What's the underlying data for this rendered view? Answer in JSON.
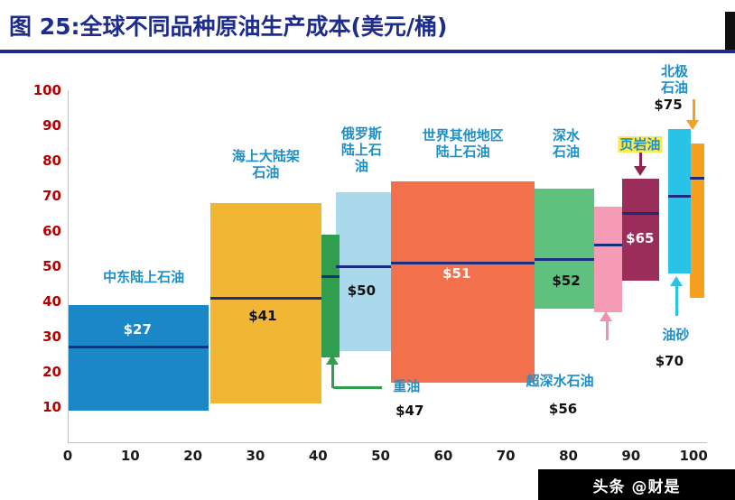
{
  "header": {
    "title": "图 25:全球不同品种原油生产成本(美元/桶)",
    "accent_color": "#1e2c8e"
  },
  "watermark": {
    "text": "头条 @财是"
  },
  "chart_data": {
    "type": "bar",
    "variant": "floating-cost-range-bars",
    "title": "全球不同品种原油生产成本(美元/桶)",
    "unit": "美元/桶",
    "xlim": [
      0,
      102
    ],
    "ylim": [
      0,
      100
    ],
    "x_ticks": [
      0,
      10,
      20,
      30,
      40,
      50,
      60,
      70,
      80,
      90,
      100
    ],
    "y_ticks": [
      10,
      20,
      30,
      40,
      50,
      60,
      70,
      80,
      90,
      100
    ],
    "grid": false,
    "legend": false,
    "label_color": "#1e8fc6",
    "avg_line_color": "#1d2d7e",
    "y_tick_color": "#b30000",
    "x_tick_color": "#1a1a1a",
    "bars": [
      {
        "id": "middle-east",
        "name": "中东陆上石油",
        "x0": 0,
        "x1": 22.3,
        "low": 9,
        "high": 39,
        "avg": 27,
        "avg_label": "$27",
        "color": "#1b87c6"
      },
      {
        "id": "offshore-shelf",
        "name": "海上大陆架石油",
        "x0": 22.7,
        "x1": 40.4,
        "low": 11,
        "high": 68,
        "avg": 41,
        "avg_label": "$41",
        "color": "#f2b635"
      },
      {
        "id": "russia",
        "name": "俄罗斯陆上石油",
        "x0": 42.7,
        "x1": 51.5,
        "low": 26,
        "high": 71,
        "avg": 50,
        "avg_label": "$50",
        "color": "#a9d9eb"
      },
      {
        "id": "heavy-oil",
        "name": "重油",
        "x0": 40.4,
        "x1": 43.3,
        "low": 24,
        "high": 59,
        "avg": 47,
        "avg_label": "$47",
        "color": "#2f9e4d"
      },
      {
        "id": "row-onshore",
        "name": "世界其他地区陆上石油",
        "x0": 51.5,
        "x1": 74.4,
        "low": 17,
        "high": 74,
        "avg": 51,
        "avg_label": "$51",
        "color": "#f3704c"
      },
      {
        "id": "deepwater",
        "name": "深水石油",
        "x0": 74.4,
        "x1": 83.9,
        "low": 38,
        "high": 72,
        "avg": 52,
        "avg_label": "$52",
        "color": "#5fc17d"
      },
      {
        "id": "ultra-deepwater",
        "name": "超深水石油",
        "x0": 83.9,
        "x1": 88.5,
        "low": 37,
        "high": 67,
        "avg": 56,
        "avg_label": "$56",
        "color": "#f59bb5"
      },
      {
        "id": "shale",
        "name": "页岩油",
        "x0": 88.5,
        "x1": 94.4,
        "low": 46,
        "high": 75,
        "avg": 65,
        "avg_label": "$65",
        "color": "#9b2d5a"
      },
      {
        "id": "arctic",
        "name": "北极石油",
        "x0": 99.2,
        "x1": 101.6,
        "low": 41,
        "high": 85,
        "avg": 75,
        "avg_label": "$75",
        "color": "#f5a01f"
      },
      {
        "id": "oil-sands",
        "name": "油砂",
        "x0": 95.8,
        "x1": 99.4,
        "low": 48,
        "high": 89,
        "avg": 70,
        "avg_label": "$70",
        "color": "#2ac3e8"
      }
    ],
    "labels": [
      {
        "name": "label-middle-east-onshore",
        "text": "中东陆上石油",
        "x": 12,
        "y": 47
      },
      {
        "name": "label-offshore-shelf",
        "text": "海上大陆架\n石油",
        "x": 31.5,
        "y": 79
      },
      {
        "name": "label-russia-onshore",
        "text": "俄罗斯\n陆上石\n油",
        "x": 46.8,
        "y": 83
      },
      {
        "name": "label-row-onshore",
        "text": "世界其他地区\n陆上石油",
        "x": 63,
        "y": 85
      },
      {
        "name": "label-deepwater",
        "text": "深水\n石油",
        "x": 79.5,
        "y": 85
      },
      {
        "name": "label-shale",
        "text": "页岩油",
        "x": 91.3,
        "y": 84.5,
        "bg": "#ffe84a"
      },
      {
        "name": "label-arctic",
        "text": "北极石油",
        "x": 96.8,
        "y": 103
      },
      {
        "name": "label-heavy-oil",
        "text": "重油",
        "x": 54,
        "y": 16
      },
      {
        "name": "label-ultra-deepwater",
        "text": "超深水石油",
        "x": 78.5,
        "y": 17.5
      },
      {
        "name": "label-oil-sands",
        "text": "油砂",
        "x": 97,
        "y": 30.5
      },
      {
        "name": "value-middle-east",
        "text": "$27",
        "x": 11,
        "y": 32,
        "color": "#ffffff"
      },
      {
        "name": "value-offshore-shelf",
        "text": "$41",
        "x": 31,
        "y": 36,
        "color": "#111111"
      },
      {
        "name": "value-russia",
        "text": "$50",
        "x": 46.8,
        "y": 43,
        "color": "#111111"
      },
      {
        "name": "value-row-onshore",
        "text": "$51",
        "x": 62,
        "y": 48,
        "color": "#ffffff"
      },
      {
        "name": "value-deepwater",
        "text": "$52",
        "x": 79.5,
        "y": 46,
        "color": "#111111"
      },
      {
        "name": "value-shale",
        "text": "$65",
        "x": 91.3,
        "y": 58,
        "color": "#ffffff"
      },
      {
        "name": "value-arctic",
        "text": "$75",
        "x": 95.8,
        "y": 96,
        "color": "#111111"
      },
      {
        "name": "value-heavy-oil",
        "text": "$47",
        "x": 54.5,
        "y": 9,
        "color": "#111111"
      },
      {
        "name": "value-ultra-deepwater",
        "text": "$56",
        "x": 79,
        "y": 9.5,
        "color": "#111111"
      },
      {
        "name": "value-oil-sands",
        "text": "$70",
        "x": 96,
        "y": 23,
        "color": "#111111"
      }
    ],
    "arrows": [
      {
        "name": "heavy-oil-arrow",
        "x": 42.2,
        "y1": 15.5,
        "y2": 23.5,
        "dir": "up",
        "color": "#2f9e4d",
        "tail_x2": 50
      },
      {
        "name": "ultra-deepwater-arrow",
        "x": 86,
        "y1": 29,
        "y2": 36,
        "dir": "up",
        "color": "#f291ad"
      },
      {
        "name": "oil-sands-arrow",
        "x": 97.2,
        "y1": 36,
        "y2": 46,
        "dir": "up",
        "color": "#2ac3e8"
      },
      {
        "name": "shale-arrow",
        "x": 91.4,
        "y1": 83,
        "y2": 77,
        "dir": "down",
        "color": "#8e2450"
      },
      {
        "name": "arctic-arrow",
        "x": 99.9,
        "y1": 97.5,
        "y2": 90,
        "dir": "down",
        "color": "#f5a01f"
      }
    ]
  }
}
